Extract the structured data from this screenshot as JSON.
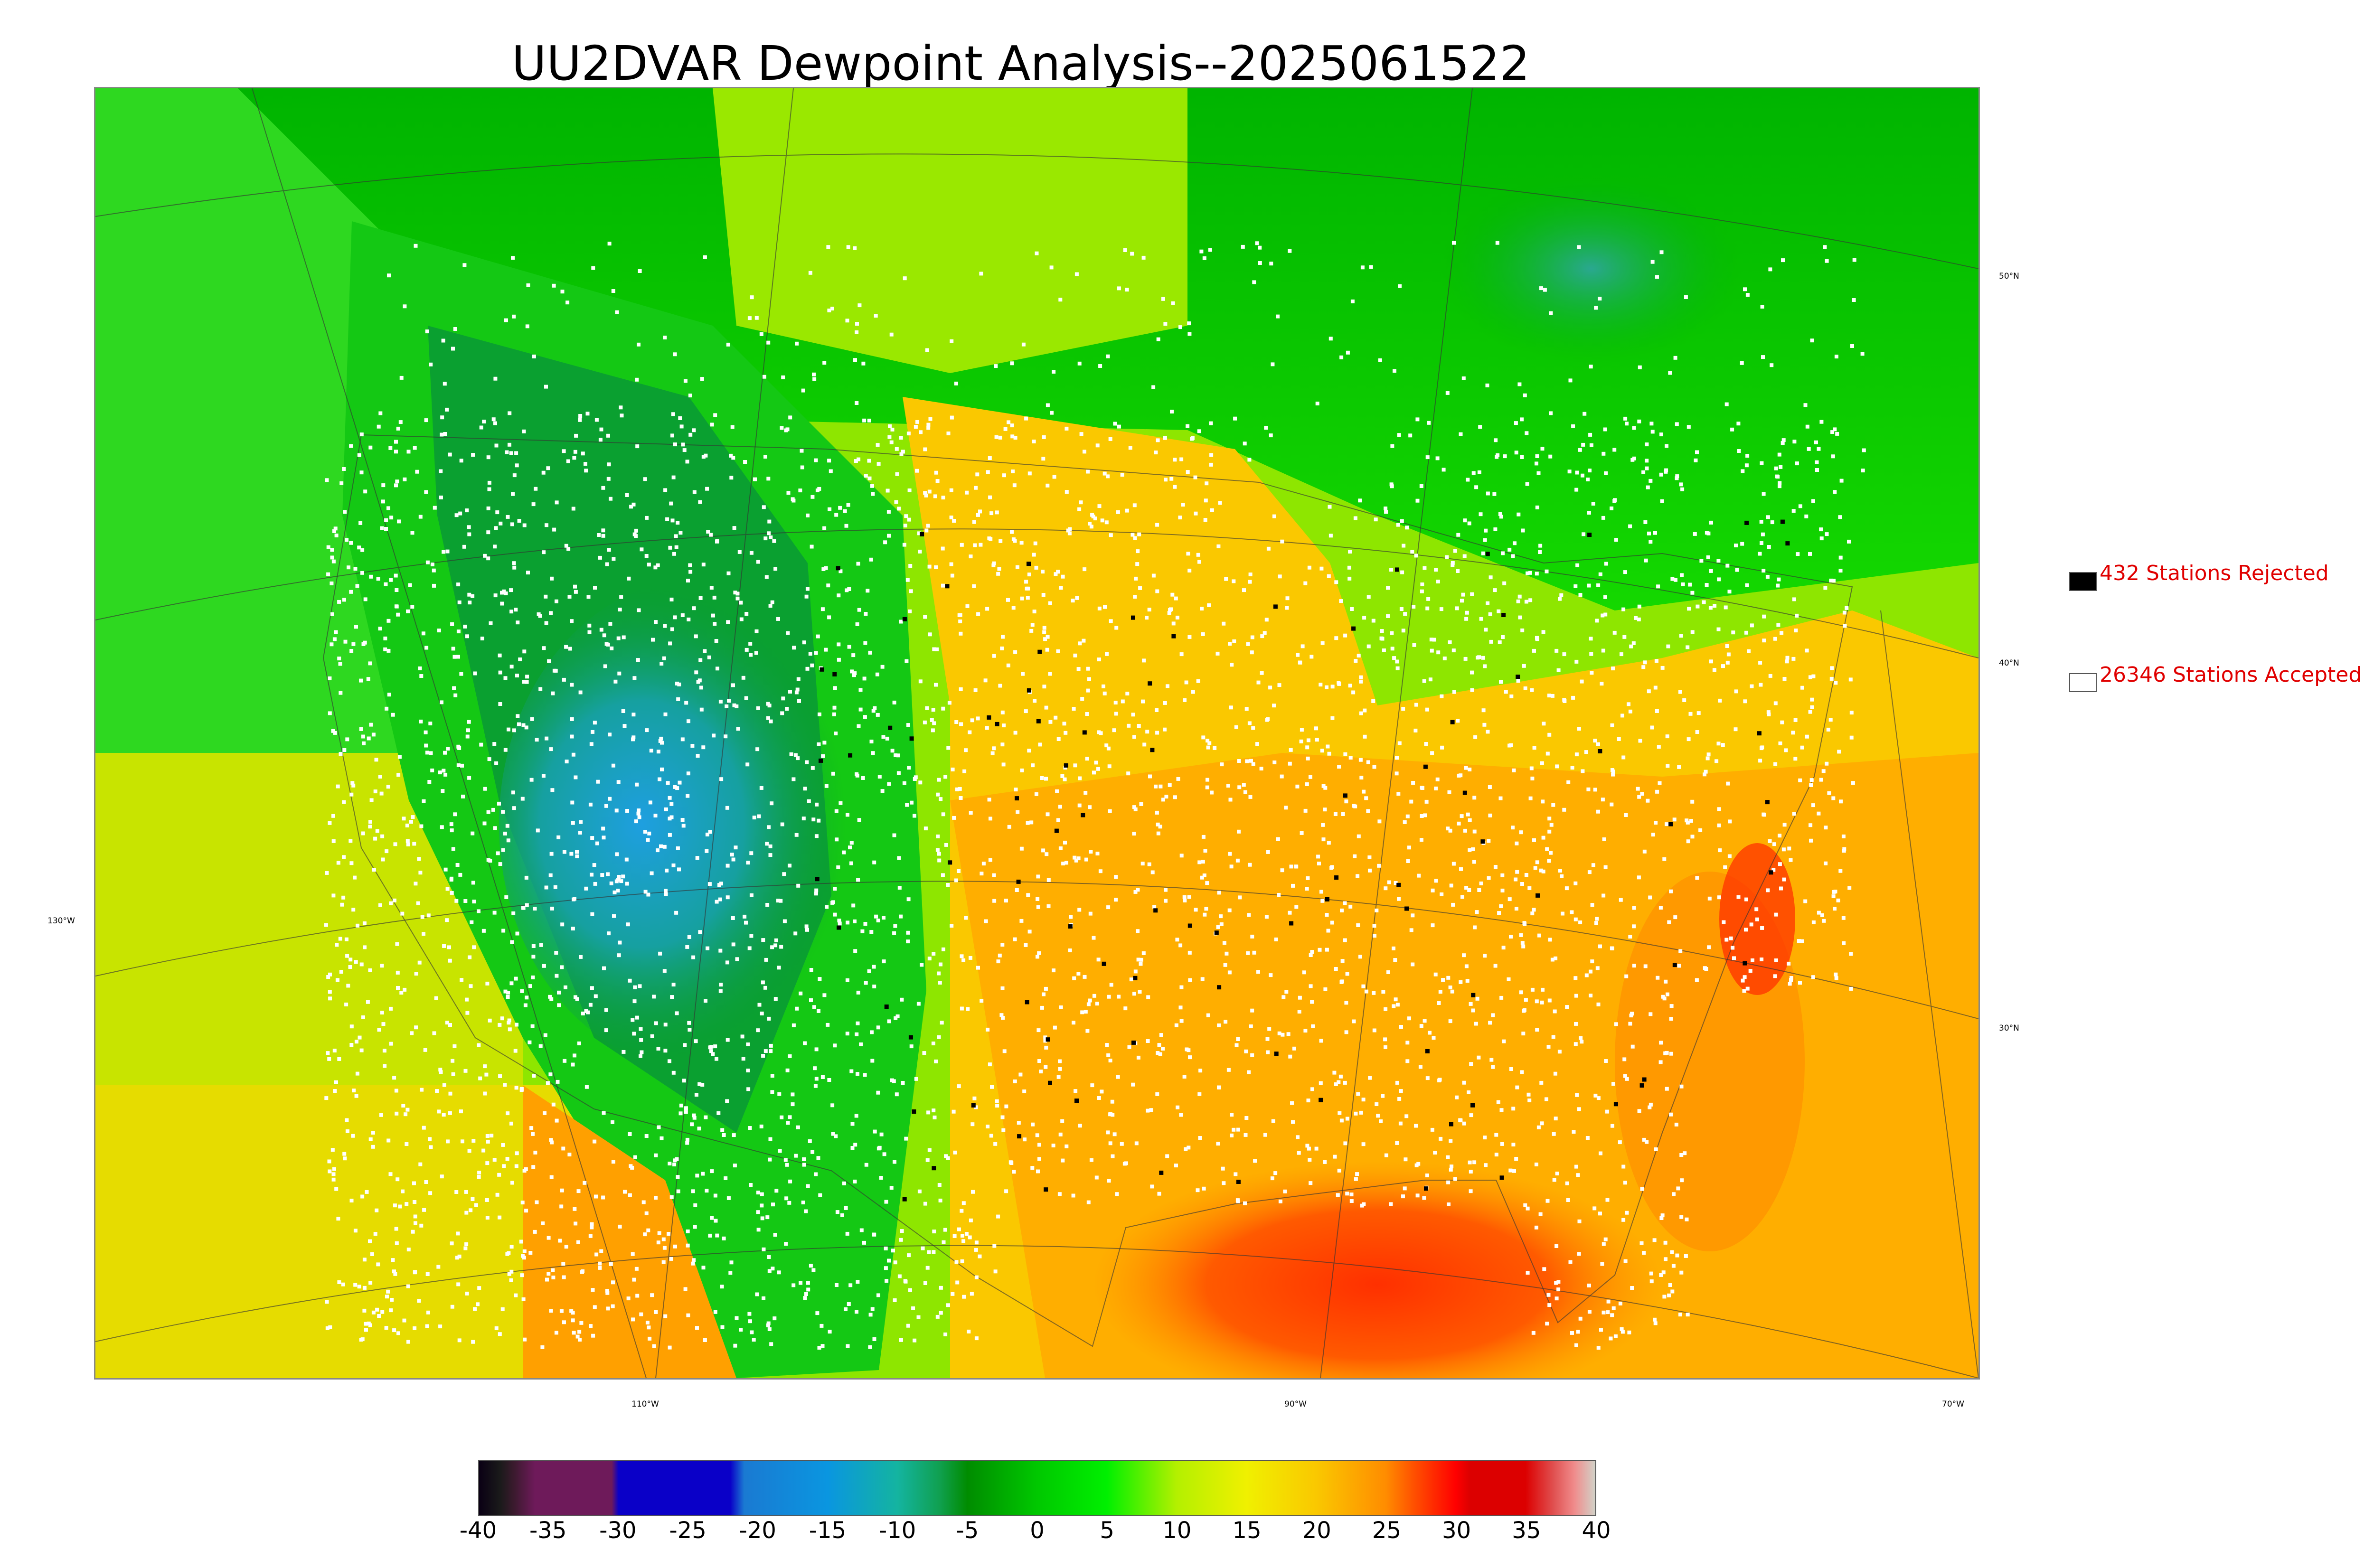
{
  "title": "UU2DVAR Dewpoint Analysis--2025061522",
  "graticule": {
    "lat_labels": [
      "50°N",
      "40°N",
      "30°N"
    ],
    "lon_labels": [
      "130°W",
      "110°W",
      "90°W",
      "70°W"
    ]
  },
  "legend": {
    "rejected": {
      "count_text": "432 Stations Rejected",
      "swatch_color": "#000000"
    },
    "accepted": {
      "count_text": "26346 Stations Accepted",
      "swatch_color": "#ffffff"
    },
    "text_color": "#e00000"
  },
  "colorbar": {
    "min": -40,
    "max": 40,
    "tick_labels": [
      "-40",
      "-35",
      "-30",
      "-25",
      "-20",
      "-15",
      "-10",
      "-5",
      "0",
      "5",
      "10",
      "15",
      "20",
      "25",
      "30",
      "35",
      "40"
    ],
    "stops": [
      {
        "v": -40,
        "c": "#0a0014"
      },
      {
        "v": -38.5,
        "c": "#1a1a1a"
      },
      {
        "v": -37.5,
        "c": "#3b1a2e"
      },
      {
        "v": -36,
        "c": "#6e1a5a"
      },
      {
        "v": -30.5,
        "c": "#6e1a5a"
      },
      {
        "v": -30,
        "c": "#0a00c8"
      },
      {
        "v": -22,
        "c": "#0a00c8"
      },
      {
        "v": -21,
        "c": "#1a7ad2"
      },
      {
        "v": -15,
        "c": "#0a96e0"
      },
      {
        "v": -10,
        "c": "#14b4a0"
      },
      {
        "v": -7,
        "c": "#10a050"
      },
      {
        "v": -5,
        "c": "#008c00"
      },
      {
        "v": 0,
        "c": "#00c800"
      },
      {
        "v": 5,
        "c": "#00f000"
      },
      {
        "v": 10,
        "c": "#b4f000"
      },
      {
        "v": 15,
        "c": "#f0f000"
      },
      {
        "v": 20,
        "c": "#fac800"
      },
      {
        "v": 25,
        "c": "#ff8c00"
      },
      {
        "v": 27,
        "c": "#ff5000"
      },
      {
        "v": 30,
        "c": "#ff0000"
      },
      {
        "v": 31,
        "c": "#dc0000"
      },
      {
        "v": 35,
        "c": "#dc0000"
      },
      {
        "v": 37,
        "c": "#e05050"
      },
      {
        "v": 38.5,
        "c": "#f08c8c"
      },
      {
        "v": 40,
        "c": "#d2d2c8"
      }
    ]
  }
}
